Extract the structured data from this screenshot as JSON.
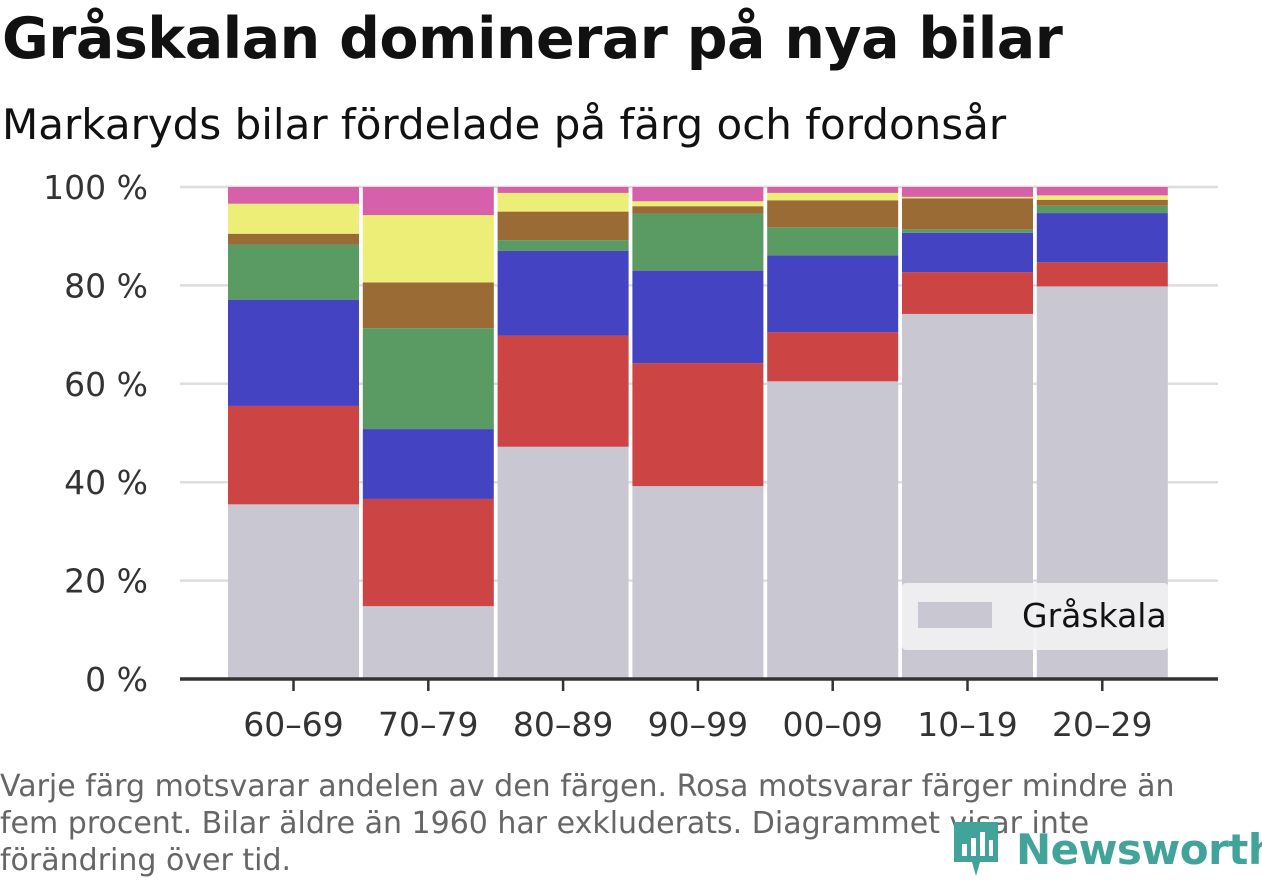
{
  "title": "Gråskalan dominerar på nya bilar",
  "subtitle": "Markaryds bilar fördelade på färg och fordonsår",
  "footnote": "Varje färg motsvarar andelen av den färgen. Rosa motsvarar färger mindre än fem procent. Bilar äldre än 1960 har exkluderats. Diagrammet visar inte förändring över tid.",
  "brand": "Newsworthy",
  "colors": {
    "background": "#ffffff",
    "grid": "#dddddd",
    "axis": "#333333",
    "brand": "#41a39a"
  },
  "chart_data": {
    "type": "bar",
    "stacked": true,
    "categories": [
      "60–69",
      "70–79",
      "80–89",
      "90–99",
      "00–09",
      "10–19",
      "20–29"
    ],
    "ylim": [
      0,
      100
    ],
    "yticks": [
      0,
      20,
      40,
      60,
      80,
      100
    ],
    "ytick_labels": [
      "0 %",
      "20 %",
      "40 %",
      "60 %",
      "80 %",
      "100 %"
    ],
    "grid": true,
    "legend": {
      "placement": "bottom-right",
      "entries": [
        "Gråskala"
      ]
    },
    "series": [
      {
        "name": "Gråskala",
        "color": "#c8c7d2",
        "values": [
          35.5,
          14.8,
          47.2,
          39.2,
          60.5,
          74.2,
          79.8
        ]
      },
      {
        "color": "#cc4444",
        "values": [
          20.0,
          21.8,
          22.6,
          25.0,
          10.0,
          8.5,
          4.9
        ]
      },
      {
        "color": "#4444c2",
        "values": [
          21.6,
          14.2,
          17.2,
          18.8,
          15.6,
          8.0,
          10.0
        ]
      },
      {
        "color": "#5a9a63",
        "values": [
          11.2,
          20.5,
          2.2,
          11.6,
          5.7,
          0.7,
          1.5
        ]
      },
      {
        "color": "#9b6b35",
        "values": [
          2.2,
          9.3,
          5.8,
          1.5,
          5.5,
          6.3,
          1.2
        ]
      },
      {
        "color": "#ecee78",
        "values": [
          6.1,
          13.7,
          3.8,
          1.0,
          1.5,
          0.3,
          0.9
        ]
      },
      {
        "color": "#d660aa",
        "values": [
          3.4,
          5.7,
          1.2,
          2.9,
          1.2,
          2.0,
          1.7
        ]
      }
    ]
  }
}
